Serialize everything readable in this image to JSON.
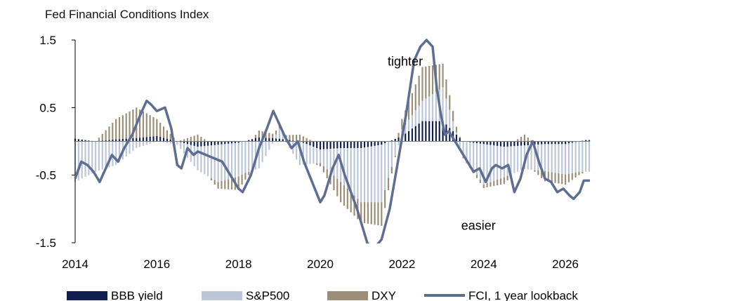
{
  "chart_data": {
    "type": "bar",
    "title": "Fed Financial Conditions Index",
    "xlabel": "",
    "ylabel": "",
    "x_ticks": [
      "2014",
      "2016",
      "2018",
      "2020",
      "2022",
      "2024",
      "2026"
    ],
    "y_ticks": [
      "1.5",
      "0.5",
      "-0.5",
      "-1.5"
    ],
    "ylim": [
      -1.5,
      1.5
    ],
    "xlim": [
      2014.0,
      2026.6
    ],
    "grid": false,
    "legend_position": "bottom",
    "annotations": [
      {
        "text": "tighter",
        "x": 2021.65,
        "y": 1.12
      },
      {
        "text": "easier",
        "x": 2023.45,
        "y": -1.31
      }
    ],
    "colors": {
      "BBB yield": "#0f1f4f",
      "S&P500": "#bcc6d9",
      "DXY": "#9c8d76",
      "FCI, 1 year lookback": "#5e6e92"
    },
    "bar_series": [
      {
        "name": "BBB yield",
        "x": [
          2014.0,
          2014.5,
          2015.0,
          2015.5,
          2016.0,
          2016.5,
          2017.0,
          2017.5,
          2018.0,
          2018.5,
          2019.0,
          2019.5,
          2020.0,
          2020.5,
          2021.0,
          2021.5,
          2022.0,
          2022.5,
          2023.0,
          2023.5,
          2024.0,
          2024.5,
          2025.0,
          2025.5,
          2026.0,
          2026.5
        ],
        "values": [
          0.04,
          0.0,
          0.03,
          0.05,
          0.08,
          0.0,
          -0.08,
          -0.05,
          -0.02,
          0.06,
          0.04,
          0.0,
          -0.12,
          -0.1,
          -0.1,
          -0.05,
          0.08,
          0.3,
          0.3,
          0.0,
          -0.04,
          -0.08,
          -0.06,
          -0.04,
          -0.04,
          0.02
        ]
      },
      {
        "name": "S&P500",
        "x": [
          2014.0,
          2014.5,
          2015.0,
          2015.5,
          2016.0,
          2016.5,
          2017.0,
          2017.5,
          2018.0,
          2018.5,
          2019.0,
          2019.5,
          2020.0,
          2020.5,
          2021.0,
          2021.5,
          2022.0,
          2022.5,
          2023.0,
          2023.5,
          2024.0,
          2024.5,
          2025.0,
          2025.5,
          2026.0,
          2026.5
        ],
        "values": [
          -0.6,
          -0.45,
          -0.35,
          -0.1,
          0.0,
          -0.05,
          -0.35,
          -0.55,
          -0.5,
          -0.4,
          0.15,
          -0.35,
          -0.2,
          -0.5,
          -0.8,
          -0.85,
          0.1,
          0.3,
          0.5,
          -0.2,
          -0.6,
          -0.45,
          -0.35,
          -0.4,
          -0.45,
          -0.45
        ]
      },
      {
        "name": "DXY",
        "x": [
          2014.0,
          2014.5,
          2015.0,
          2015.5,
          2016.0,
          2016.5,
          2017.0,
          2017.5,
          2018.0,
          2018.5,
          2019.0,
          2019.5,
          2020.0,
          2020.5,
          2021.0,
          2021.5,
          2022.0,
          2022.5,
          2023.0,
          2023.5,
          2024.0,
          2024.5,
          2025.0,
          2025.5,
          2026.0,
          2026.5
        ],
        "values": [
          0.0,
          0.0,
          0.3,
          0.45,
          0.25,
          0.0,
          0.1,
          -0.1,
          -0.2,
          0.1,
          0.05,
          0.1,
          -0.05,
          -0.3,
          -0.3,
          -0.35,
          0.15,
          0.5,
          0.35,
          -0.05,
          -0.05,
          -0.1,
          0.1,
          -0.15,
          -0.15,
          0.0
        ]
      }
    ],
    "line_series": {
      "name": "FCI, 1 year lookback",
      "x": [
        2014.0,
        2014.15,
        2014.3,
        2014.45,
        2014.6,
        2014.75,
        2014.9,
        2015.05,
        2015.2,
        2015.4,
        2015.6,
        2015.75,
        2015.85,
        2016.0,
        2016.2,
        2016.35,
        2016.5,
        2016.6,
        2016.75,
        2016.9,
        2017.0,
        2017.2,
        2017.4,
        2017.6,
        2017.8,
        2018.0,
        2018.1,
        2018.3,
        2018.5,
        2018.7,
        2018.85,
        2019.0,
        2019.15,
        2019.3,
        2019.45,
        2019.6,
        2019.8,
        2020.0,
        2020.1,
        2020.3,
        2020.45,
        2020.6,
        2020.75,
        2020.9,
        2021.05,
        2021.15,
        2021.3,
        2021.5,
        2021.7,
        2021.9,
        2022.1,
        2022.3,
        2022.45,
        2022.6,
        2022.75,
        2022.85,
        2022.95,
        2023.05,
        2023.15,
        2023.3,
        2023.45,
        2023.6,
        2023.75,
        2023.9,
        2024.05,
        2024.2,
        2024.3,
        2024.45,
        2024.6,
        2024.75,
        2024.9,
        2025.05,
        2025.2,
        2025.35,
        2025.5,
        2025.65,
        2025.8,
        2025.95,
        2026.1,
        2026.2,
        2026.35,
        2026.45,
        2026.6
      ],
      "values": [
        -0.55,
        -0.3,
        -0.35,
        -0.45,
        -0.6,
        -0.4,
        -0.2,
        -0.3,
        -0.1,
        0.1,
        0.4,
        0.6,
        0.55,
        0.45,
        0.5,
        0.2,
        -0.35,
        -0.4,
        -0.1,
        -0.2,
        -0.15,
        -0.2,
        -0.25,
        -0.3,
        -0.5,
        -0.7,
        -0.75,
        -0.5,
        -0.1,
        0.2,
        0.45,
        0.25,
        0.05,
        -0.1,
        0.0,
        -0.3,
        -0.6,
        -0.9,
        -0.8,
        -0.4,
        -0.2,
        -0.5,
        -0.75,
        -1.0,
        -1.3,
        -1.5,
        -1.6,
        -1.45,
        -1.0,
        -0.3,
        0.4,
        1.2,
        1.4,
        1.5,
        1.4,
        0.8,
        0.4,
        0.1,
        0.15,
        0.0,
        -0.15,
        -0.3,
        -0.45,
        -0.4,
        -0.6,
        -0.4,
        -0.35,
        -0.4,
        -0.35,
        -0.75,
        -0.55,
        -0.2,
        0.0,
        -0.3,
        -0.55,
        -0.6,
        -0.75,
        -0.7,
        -0.8,
        -0.85,
        -0.75,
        -0.58,
        -0.58
      ]
    }
  }
}
